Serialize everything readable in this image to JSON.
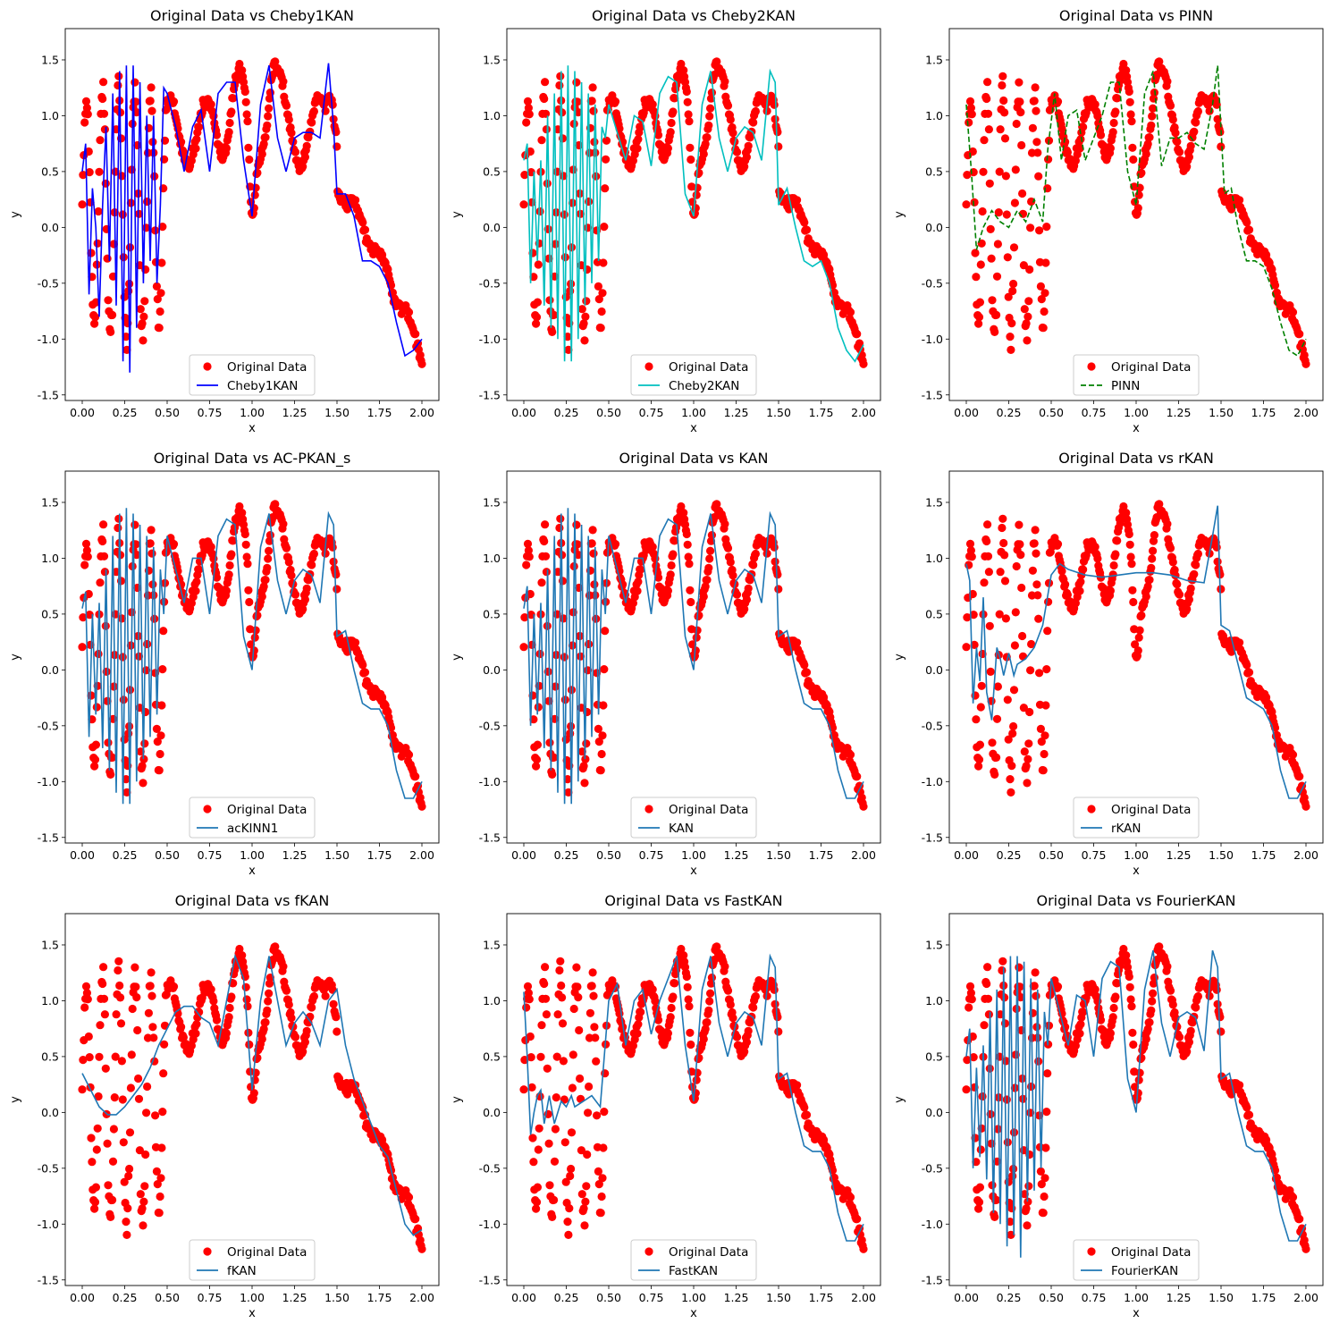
{
  "figure": {
    "data_label": "Original Data",
    "data_color": "#ff0000",
    "xlabel": "x",
    "ylabel": "y",
    "xlim": [
      -0.1,
      2.1
    ],
    "ylim": [
      -1.55,
      1.78
    ],
    "xticks": [
      0.0,
      0.25,
      0.5,
      0.75,
      1.0,
      1.25,
      1.5,
      1.75,
      2.0
    ],
    "xtick_labels": [
      "0.00",
      "0.25",
      "0.50",
      "0.75",
      "1.00",
      "1.25",
      "1.50",
      "1.75",
      "2.00"
    ],
    "yticks": [
      -1.5,
      -1.0,
      -0.5,
      0.0,
      0.5,
      1.0,
      1.5
    ],
    "ytick_labels": [
      "-1.5",
      "-1.0",
      "-0.5",
      "0.0",
      "0.5",
      "1.0",
      "1.5"
    ],
    "legend_position": "lower center"
  },
  "chart_data": [
    {
      "type": "line",
      "title": "Original Data vs Cheby1KAN",
      "model": "Cheby1KAN",
      "color": "#0000ff",
      "dashed": false,
      "x": [
        0.0,
        0.02,
        0.04,
        0.06,
        0.08,
        0.1,
        0.12,
        0.14,
        0.16,
        0.18,
        0.2,
        0.22,
        0.24,
        0.26,
        0.28,
        0.3,
        0.32,
        0.34,
        0.36,
        0.38,
        0.4,
        0.42,
        0.44,
        0.46,
        0.48,
        0.5,
        0.55,
        0.6,
        0.65,
        0.7,
        0.75,
        0.8,
        0.85,
        0.9,
        0.95,
        1.0,
        1.05,
        1.1,
        1.15,
        1.2,
        1.25,
        1.3,
        1.35,
        1.4,
        1.45,
        1.48,
        1.5,
        1.55,
        1.6,
        1.65,
        1.7,
        1.75,
        1.8,
        1.85,
        1.9,
        1.95,
        2.0
      ],
      "y": [
        0.5,
        0.75,
        -0.6,
        0.35,
        0.0,
        -0.8,
        0.2,
        0.9,
        -0.3,
        1.2,
        -0.7,
        1.4,
        -1.2,
        1.45,
        -1.3,
        1.45,
        -0.9,
        1.3,
        -0.5,
        1.0,
        -0.3,
        1.0,
        -0.5,
        0.2,
        1.25,
        1.2,
        0.9,
        0.5,
        0.9,
        1.05,
        0.5,
        1.2,
        1.3,
        1.3,
        0.6,
        0.1,
        1.1,
        1.45,
        0.8,
        0.5,
        0.8,
        0.85,
        0.85,
        0.8,
        1.47,
        0.9,
        0.3,
        0.3,
        0.1,
        -0.3,
        -0.3,
        -0.35,
        -0.5,
        -0.85,
        -1.15,
        -1.1,
        -1.0
      ]
    },
    {
      "type": "line",
      "title": "Original Data vs Cheby2KAN",
      "model": "Cheby2KAN",
      "color": "#00bfbf",
      "dashed": false,
      "x": [
        0.0,
        0.02,
        0.04,
        0.06,
        0.08,
        0.1,
        0.12,
        0.14,
        0.16,
        0.18,
        0.2,
        0.22,
        0.24,
        0.26,
        0.28,
        0.3,
        0.32,
        0.34,
        0.36,
        0.38,
        0.4,
        0.42,
        0.44,
        0.46,
        0.48,
        0.5,
        0.55,
        0.6,
        0.65,
        0.7,
        0.75,
        0.8,
        0.85,
        0.9,
        0.95,
        1.0,
        1.05,
        1.1,
        1.15,
        1.2,
        1.25,
        1.3,
        1.35,
        1.4,
        1.45,
        1.48,
        1.5,
        1.55,
        1.6,
        1.65,
        1.7,
        1.75,
        1.8,
        1.85,
        1.9,
        1.95,
        2.0
      ],
      "y": [
        0.6,
        0.75,
        -0.5,
        0.5,
        -0.3,
        0.6,
        -0.7,
        1.0,
        -0.9,
        1.2,
        -1.0,
        1.4,
        -1.2,
        1.45,
        -1.2,
        1.4,
        -1.0,
        1.3,
        -0.7,
        1.2,
        -0.5,
        1.1,
        -0.3,
        0.9,
        0.8,
        1.1,
        0.85,
        0.6,
        1.0,
        0.95,
        0.55,
        1.2,
        1.35,
        1.3,
        0.3,
        0.1,
        1.1,
        1.4,
        0.8,
        0.5,
        0.8,
        0.9,
        0.85,
        0.6,
        1.4,
        1.3,
        0.2,
        0.35,
        0.0,
        -0.3,
        -0.35,
        -0.3,
        -0.5,
        -0.9,
        -1.1,
        -1.2,
        -1.05
      ]
    },
    {
      "type": "line",
      "title": "Original Data vs PINN",
      "model": "PINN",
      "color": "#008000",
      "dashed": true,
      "x": [
        0.0,
        0.03,
        0.06,
        0.1,
        0.15,
        0.2,
        0.25,
        0.3,
        0.35,
        0.4,
        0.45,
        0.48,
        0.52,
        0.56,
        0.6,
        0.65,
        0.7,
        0.75,
        0.8,
        0.85,
        0.9,
        0.95,
        1.0,
        1.05,
        1.1,
        1.15,
        1.2,
        1.25,
        1.3,
        1.35,
        1.4,
        1.45,
        1.48,
        1.52,
        1.56,
        1.6,
        1.65,
        1.7,
        1.75,
        1.8,
        1.85,
        1.9,
        1.95,
        2.0
      ],
      "y": [
        1.1,
        0.5,
        -0.2,
        0.0,
        0.15,
        0.05,
        0.0,
        0.15,
        0.05,
        0.25,
        0.05,
        0.7,
        1.2,
        0.6,
        1.0,
        1.05,
        0.6,
        0.8,
        1.0,
        1.3,
        1.3,
        0.5,
        0.2,
        1.2,
        1.4,
        0.55,
        0.8,
        0.8,
        0.85,
        0.75,
        0.7,
        1.1,
        1.45,
        0.3,
        0.35,
        0.0,
        -0.3,
        -0.3,
        -0.35,
        -0.55,
        -0.85,
        -1.1,
        -1.15,
        -1.0
      ]
    },
    {
      "type": "line",
      "title": "Original Data vs AC-PKAN_s",
      "model": "acKINN1",
      "color": "#1f77b4",
      "dashed": false,
      "x": [
        0.0,
        0.02,
        0.04,
        0.06,
        0.08,
        0.1,
        0.12,
        0.14,
        0.16,
        0.18,
        0.2,
        0.22,
        0.24,
        0.26,
        0.28,
        0.3,
        0.32,
        0.34,
        0.36,
        0.38,
        0.4,
        0.42,
        0.44,
        0.46,
        0.48,
        0.5,
        0.55,
        0.6,
        0.65,
        0.7,
        0.75,
        0.8,
        0.85,
        0.9,
        0.95,
        1.0,
        1.05,
        1.1,
        1.15,
        1.2,
        1.25,
        1.3,
        1.35,
        1.4,
        1.45,
        1.48,
        1.5,
        1.55,
        1.6,
        1.65,
        1.7,
        1.75,
        1.8,
        1.85,
        1.9,
        1.95,
        2.0
      ],
      "y": [
        0.55,
        0.7,
        -0.6,
        0.5,
        -0.4,
        0.6,
        -0.7,
        0.9,
        -0.9,
        1.2,
        -1.1,
        1.4,
        -1.2,
        1.45,
        -1.2,
        1.4,
        -1.0,
        1.3,
        -0.8,
        1.2,
        -0.6,
        1.1,
        -0.4,
        0.9,
        0.5,
        1.2,
        0.9,
        0.6,
        1.0,
        1.0,
        0.5,
        1.2,
        1.35,
        1.3,
        0.3,
        0.0,
        1.1,
        1.4,
        0.8,
        0.5,
        0.8,
        0.9,
        0.85,
        0.6,
        1.4,
        1.3,
        0.3,
        0.35,
        0.0,
        -0.3,
        -0.35,
        -0.35,
        -0.5,
        -0.9,
        -1.15,
        -1.15,
        -1.0
      ]
    },
    {
      "type": "line",
      "title": "Original Data vs KAN",
      "model": "KAN",
      "color": "#1f77b4",
      "dashed": false,
      "x": [
        0.0,
        0.02,
        0.04,
        0.06,
        0.08,
        0.1,
        0.12,
        0.14,
        0.16,
        0.18,
        0.2,
        0.22,
        0.24,
        0.26,
        0.28,
        0.3,
        0.32,
        0.34,
        0.36,
        0.38,
        0.4,
        0.42,
        0.44,
        0.46,
        0.48,
        0.5,
        0.55,
        0.6,
        0.65,
        0.7,
        0.75,
        0.8,
        0.85,
        0.9,
        0.95,
        1.0,
        1.05,
        1.1,
        1.15,
        1.2,
        1.25,
        1.3,
        1.35,
        1.4,
        1.45,
        1.48,
        1.5,
        1.55,
        1.6,
        1.65,
        1.7,
        1.75,
        1.8,
        1.85,
        1.9,
        1.95,
        2.0
      ],
      "y": [
        0.55,
        0.75,
        -0.5,
        0.5,
        -0.4,
        0.6,
        -0.7,
        0.9,
        -0.9,
        1.2,
        -1.1,
        1.4,
        -1.2,
        1.45,
        -1.2,
        1.4,
        -1.0,
        1.3,
        -0.8,
        1.2,
        -0.6,
        1.1,
        -0.4,
        0.9,
        0.5,
        1.2,
        0.9,
        0.6,
        1.0,
        1.0,
        0.5,
        1.2,
        1.35,
        1.3,
        0.3,
        0.0,
        1.1,
        1.4,
        0.8,
        0.5,
        0.8,
        0.9,
        0.85,
        0.6,
        1.4,
        1.3,
        0.3,
        0.35,
        0.0,
        -0.3,
        -0.35,
        -0.35,
        -0.5,
        -0.9,
        -1.15,
        -1.15,
        -1.0
      ]
    },
    {
      "type": "line",
      "title": "Original Data vs rKAN",
      "model": "rKAN",
      "color": "#1f77b4",
      "dashed": false,
      "x": [
        0.0,
        0.02,
        0.04,
        0.06,
        0.08,
        0.1,
        0.12,
        0.15,
        0.18,
        0.2,
        0.22,
        0.25,
        0.28,
        0.3,
        0.35,
        0.4,
        0.45,
        0.5,
        0.55,
        0.6,
        0.7,
        0.8,
        0.9,
        1.0,
        1.1,
        1.2,
        1.3,
        1.4,
        1.45,
        1.48,
        1.5,
        1.55,
        1.6,
        1.65,
        1.7,
        1.75,
        1.8,
        1.85,
        1.9,
        1.95,
        2.0
      ],
      "y": [
        0.95,
        0.8,
        -0.3,
        0.2,
        -0.1,
        0.65,
        -0.2,
        -0.45,
        0.2,
        0.1,
        -0.05,
        0.15,
        -0.05,
        0.05,
        0.1,
        0.2,
        0.4,
        0.85,
        0.95,
        0.9,
        0.85,
        0.83,
        0.85,
        0.87,
        0.87,
        0.85,
        0.8,
        0.78,
        1.2,
        1.47,
        0.4,
        0.35,
        0.05,
        -0.25,
        -0.3,
        -0.35,
        -0.5,
        -0.9,
        -1.15,
        -1.15,
        -1.0
      ]
    },
    {
      "type": "line",
      "title": "Original Data vs fKAN",
      "model": "fKAN",
      "color": "#1f77b4",
      "dashed": false,
      "x": [
        0.0,
        0.05,
        0.1,
        0.15,
        0.2,
        0.25,
        0.3,
        0.35,
        0.4,
        0.45,
        0.5,
        0.55,
        0.6,
        0.65,
        0.7,
        0.75,
        0.8,
        0.85,
        0.9,
        0.95,
        1.0,
        1.05,
        1.1,
        1.15,
        1.2,
        1.25,
        1.3,
        1.35,
        1.4,
        1.45,
        1.5,
        1.55,
        1.6,
        1.65,
        1.7,
        1.75,
        1.8,
        1.85,
        1.9,
        1.95,
        2.0
      ],
      "y": [
        0.35,
        0.2,
        0.05,
        -0.02,
        -0.02,
        0.05,
        0.15,
        0.25,
        0.4,
        0.6,
        0.75,
        0.9,
        0.95,
        0.95,
        0.85,
        0.8,
        0.6,
        1.0,
        1.4,
        1.2,
        0.2,
        1.0,
        1.4,
        1.0,
        0.6,
        0.8,
        0.9,
        0.8,
        0.6,
        1.0,
        1.1,
        0.6,
        0.3,
        0.1,
        -0.1,
        -0.3,
        -0.4,
        -0.7,
        -1.0,
        -1.1,
        -1.05
      ]
    },
    {
      "type": "line",
      "title": "Original Data vs FastKAN",
      "model": "FastKAN",
      "color": "#1f77b4",
      "dashed": false,
      "x": [
        0.0,
        0.02,
        0.04,
        0.06,
        0.08,
        0.1,
        0.12,
        0.15,
        0.18,
        0.2,
        0.22,
        0.25,
        0.28,
        0.3,
        0.35,
        0.4,
        0.45,
        0.5,
        0.55,
        0.6,
        0.65,
        0.7,
        0.75,
        0.8,
        0.85,
        0.9,
        0.95,
        1.0,
        1.05,
        1.1,
        1.15,
        1.2,
        1.25,
        1.3,
        1.35,
        1.4,
        1.45,
        1.48,
        1.5,
        1.55,
        1.6,
        1.65,
        1.7,
        1.75,
        1.8,
        1.85,
        1.9,
        1.95,
        2.0
      ],
      "y": [
        1.08,
        0.5,
        -0.2,
        0.0,
        0.15,
        0.2,
        -0.1,
        0.15,
        -0.1,
        0.0,
        0.1,
        0.05,
        0.15,
        0.05,
        0.1,
        0.15,
        0.05,
        1.0,
        1.15,
        0.6,
        1.0,
        1.1,
        0.7,
        1.0,
        1.2,
        1.4,
        0.6,
        0.1,
        1.1,
        1.4,
        0.8,
        0.5,
        0.8,
        0.9,
        0.85,
        0.6,
        1.4,
        1.3,
        0.3,
        0.35,
        0.0,
        -0.3,
        -0.35,
        -0.35,
        -0.5,
        -0.9,
        -1.15,
        -1.15,
        -1.0
      ]
    },
    {
      "type": "line",
      "title": "Original Data vs FourierKAN",
      "model": "FourierKAN",
      "color": "#1f77b4",
      "dashed": false,
      "x": [
        0.0,
        0.02,
        0.04,
        0.06,
        0.08,
        0.1,
        0.12,
        0.14,
        0.16,
        0.18,
        0.2,
        0.22,
        0.24,
        0.26,
        0.28,
        0.3,
        0.32,
        0.34,
        0.36,
        0.38,
        0.4,
        0.42,
        0.44,
        0.46,
        0.48,
        0.5,
        0.55,
        0.6,
        0.65,
        0.7,
        0.75,
        0.8,
        0.85,
        0.9,
        0.95,
        1.0,
        1.05,
        1.1,
        1.15,
        1.2,
        1.25,
        1.3,
        1.35,
        1.4,
        1.45,
        1.48,
        1.5,
        1.55,
        1.6,
        1.65,
        1.7,
        1.75,
        1.8,
        1.85,
        1.9,
        1.95,
        2.0
      ],
      "y": [
        0.5,
        0.75,
        -0.5,
        0.4,
        -0.4,
        0.6,
        -0.6,
        0.9,
        -0.9,
        1.1,
        -1.0,
        1.3,
        -1.2,
        1.4,
        -1.1,
        1.4,
        -1.3,
        1.35,
        -0.8,
        1.2,
        -0.7,
        1.1,
        -0.5,
        0.9,
        0.6,
        1.2,
        0.9,
        0.6,
        1.05,
        1.0,
        0.5,
        1.2,
        1.35,
        1.3,
        0.3,
        0.0,
        1.1,
        1.45,
        0.8,
        0.5,
        0.85,
        0.9,
        0.85,
        0.55,
        1.45,
        1.3,
        0.3,
        0.35,
        0.0,
        -0.3,
        -0.35,
        -0.35,
        -0.5,
        -0.9,
        -1.15,
        -1.15,
        -1.0
      ]
    }
  ]
}
